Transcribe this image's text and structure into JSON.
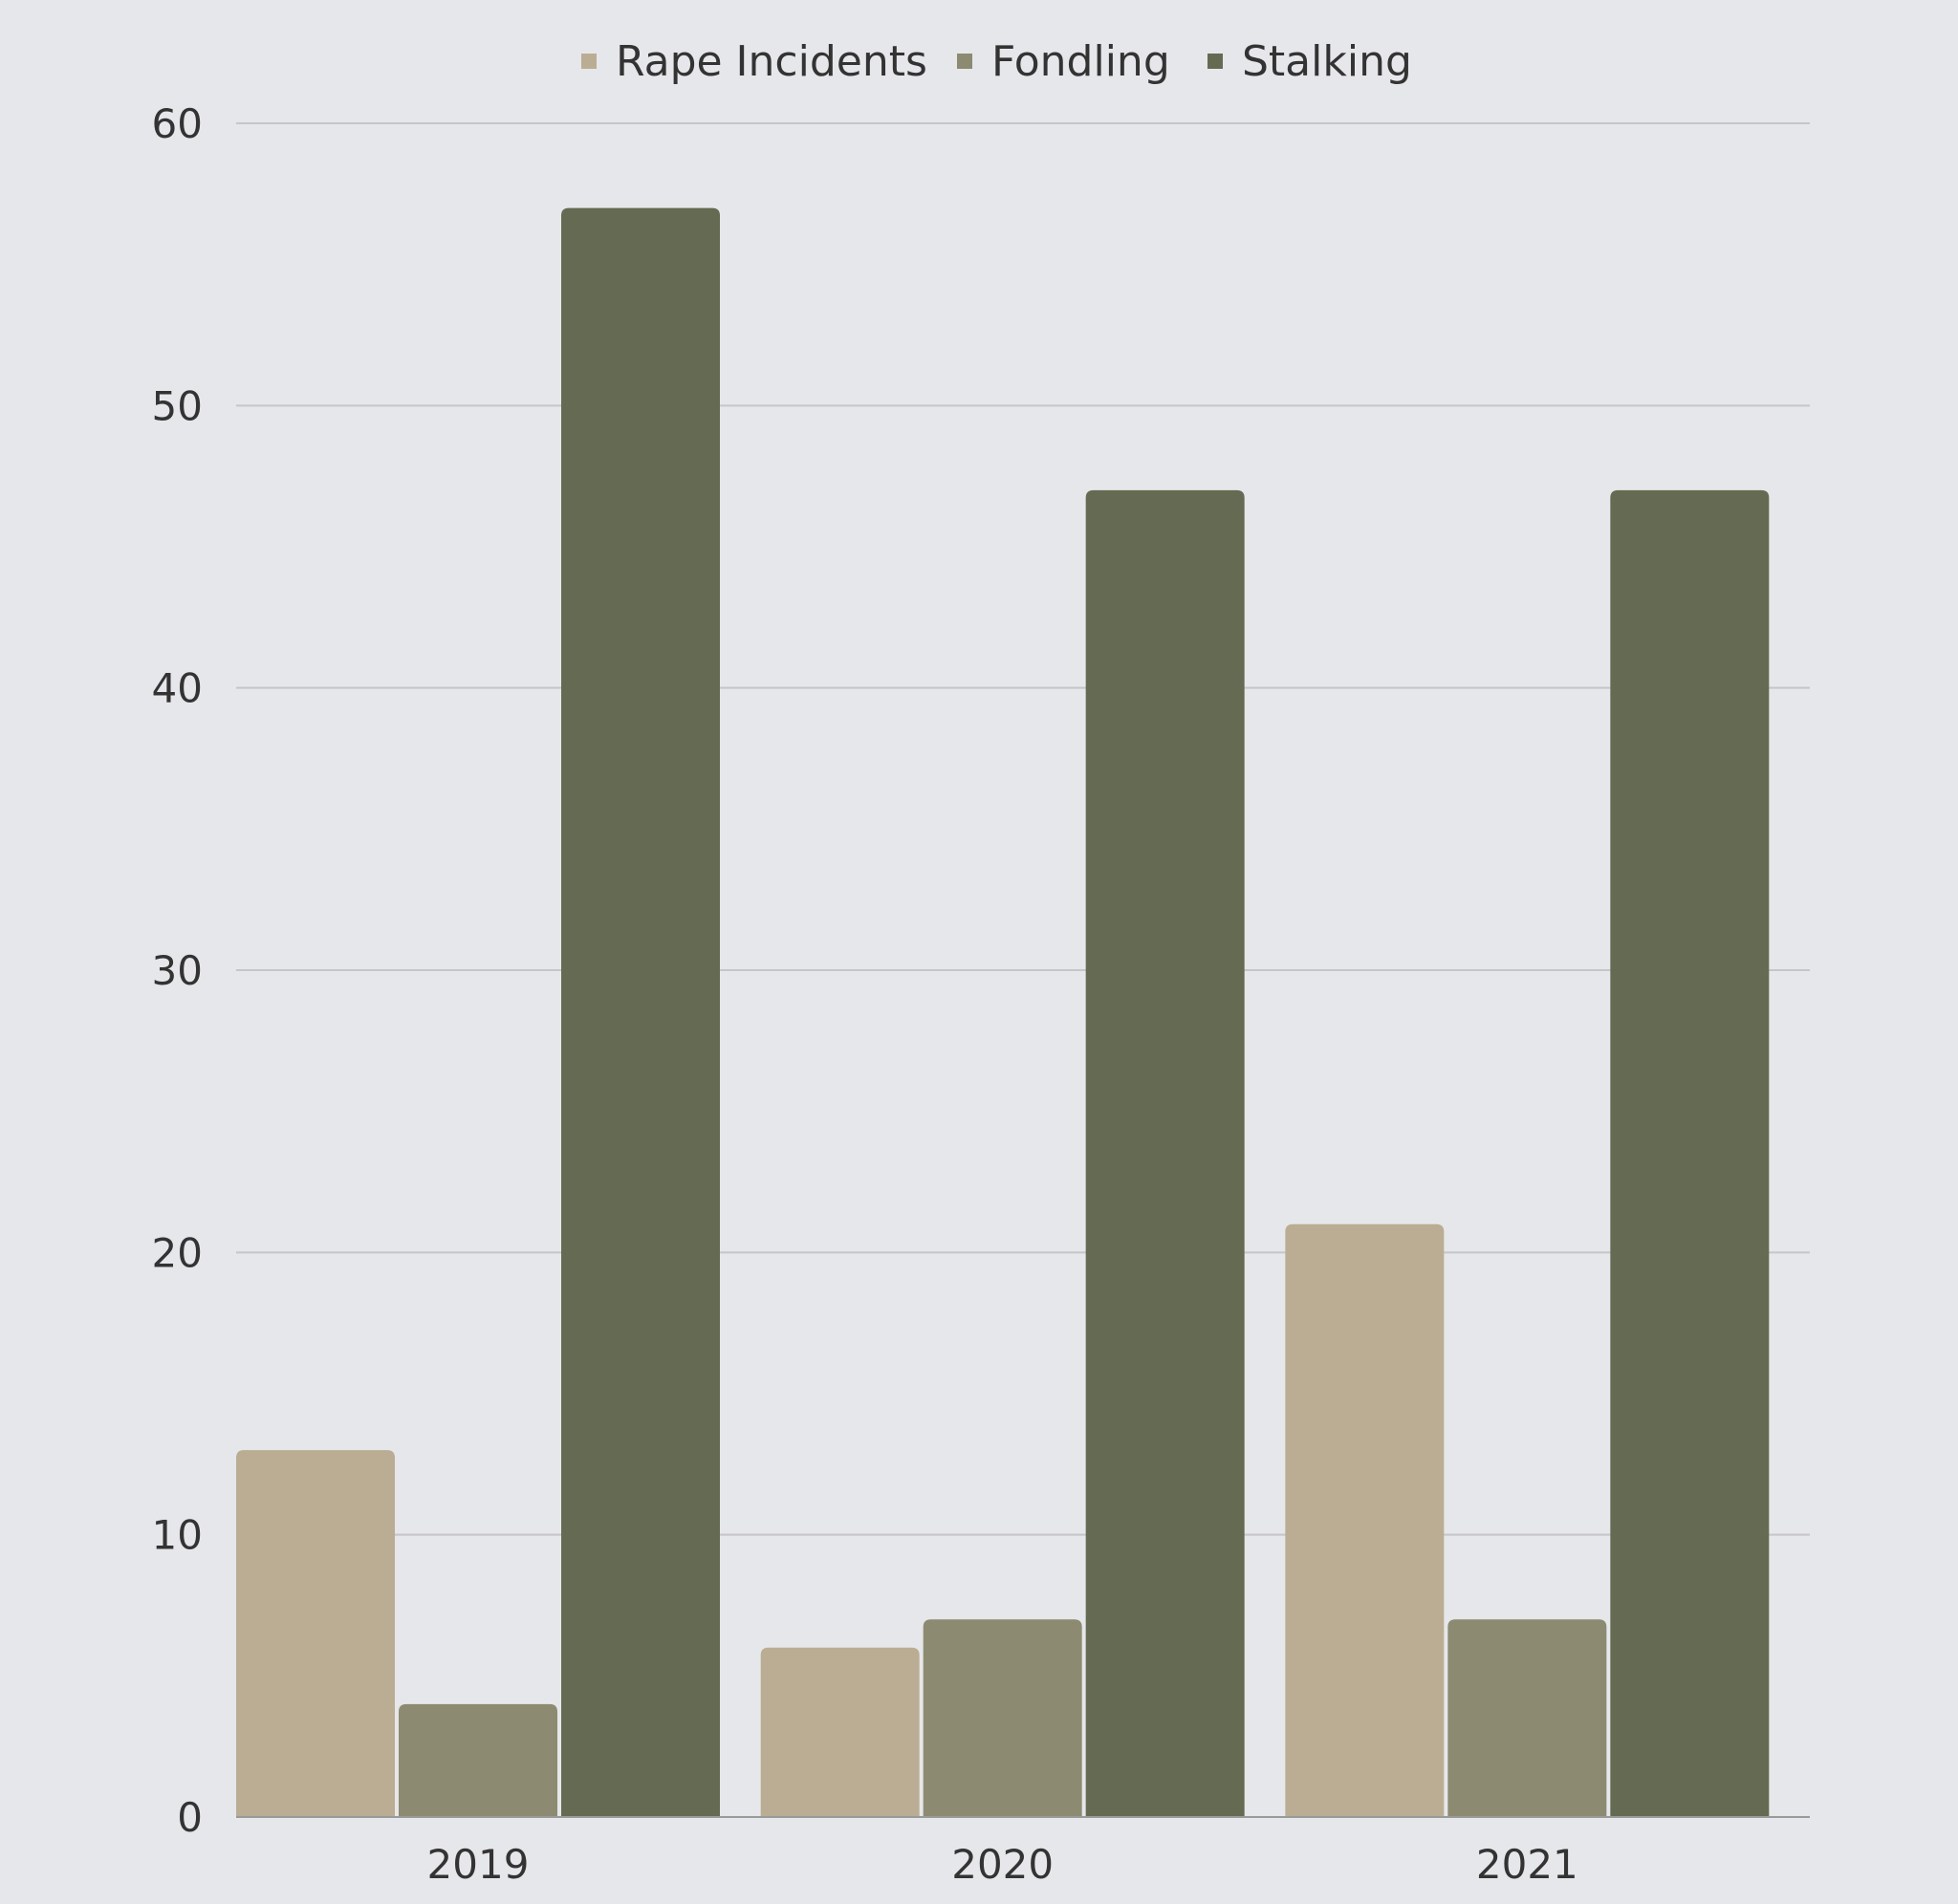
{
  "chart_data": {
    "type": "bar",
    "categories": [
      "2019",
      "2020",
      "2021"
    ],
    "series": [
      {
        "name": "Rape Incidents",
        "values": [
          13,
          6,
          21
        ],
        "color": "#bbad93"
      },
      {
        "name": "Fondling",
        "values": [
          4,
          7,
          7
        ],
        "color": "#8c8b72"
      },
      {
        "name": "Stalking",
        "values": [
          57,
          47,
          47
        ],
        "color": "#646b52"
      }
    ],
    "ylim": [
      0,
      60
    ],
    "yticks": [
      "0",
      "10",
      "20",
      "30",
      "40",
      "50",
      "60"
    ],
    "grid": true,
    "legend_position": "top-center"
  }
}
